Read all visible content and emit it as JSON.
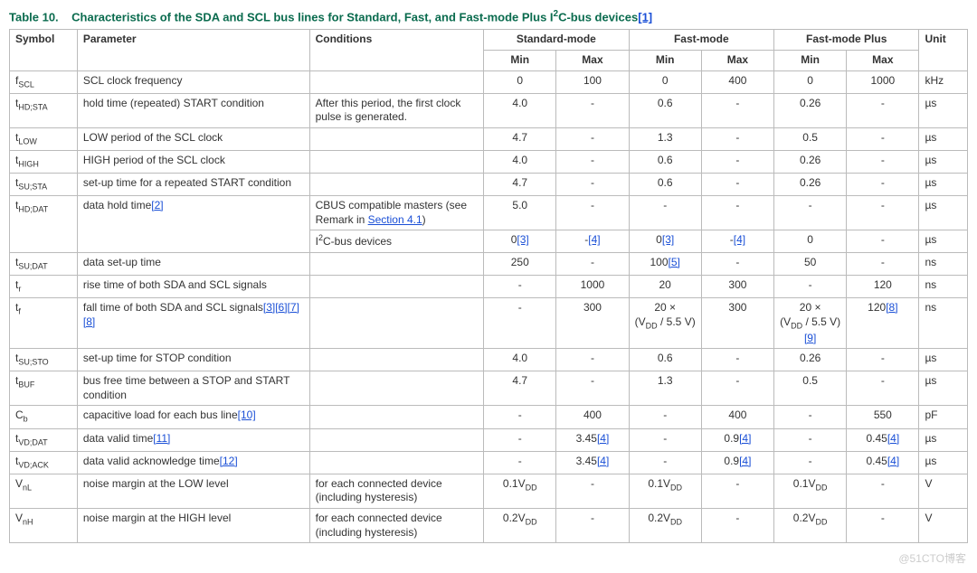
{
  "caption": {
    "label": "Table 10.",
    "text": "Characteristics of the SDA and SCL bus lines for Standard, Fast, and Fast-mode Plus I",
    "text2": "C-bus devices",
    "noteref": "[1]"
  },
  "headers": {
    "symbol": "Symbol",
    "parameter": "Parameter",
    "conditions": "Conditions",
    "std": "Standard-mode",
    "fast": "Fast-mode",
    "fmplus": "Fast-mode Plus",
    "unit": "Unit",
    "min": "Min",
    "max": "Max"
  },
  "rows": {
    "fscl": {
      "sym_pre": "f",
      "sym_sub": "SCL",
      "param": "SCL clock frequency",
      "cond": "",
      "sm_min": "0",
      "sm_max": "100",
      "fm_min": "0",
      "fm_max": "400",
      "fp_min": "0",
      "fp_max": "1000",
      "unit": "kHz"
    },
    "thdsta": {
      "sym_pre": "t",
      "sym_sub": "HD;STA",
      "param": "hold time (repeated) START condition",
      "cond": "After this period, the first clock pulse is generated.",
      "sm_min": "4.0",
      "sm_max": "-",
      "fm_min": "0.6",
      "fm_max": "-",
      "fp_min": "0.26",
      "fp_max": "-",
      "unit": "µs"
    },
    "tlow": {
      "sym_pre": "t",
      "sym_sub": "LOW",
      "param": "LOW period of the SCL clock",
      "cond": "",
      "sm_min": "4.7",
      "sm_max": "-",
      "fm_min": "1.3",
      "fm_max": "-",
      "fp_min": "0.5",
      "fp_max": "-",
      "unit": "µs"
    },
    "thigh": {
      "sym_pre": "t",
      "sym_sub": "HIGH",
      "param": "HIGH period of the SCL clock",
      "cond": "",
      "sm_min": "4.0",
      "sm_max": "-",
      "fm_min": "0.6",
      "fm_max": "-",
      "fp_min": "0.26",
      "fp_max": "-",
      "unit": "µs"
    },
    "tsusta": {
      "sym_pre": "t",
      "sym_sub": "SU;STA",
      "param": "set-up time for a repeated START condition",
      "cond": "",
      "sm_min": "4.7",
      "sm_max": "-",
      "fm_min": "0.6",
      "fm_max": "-",
      "fp_min": "0.26",
      "fp_max": "-",
      "unit": "µs"
    },
    "thddat1": {
      "sym_pre": "t",
      "sym_sub": "HD;DAT",
      "param": "data hold time",
      "param_ref": "[2]",
      "cond_pre": "CBUS compatible masters (see Remark in ",
      "cond_link": "Section 4.1",
      "cond_post": ")",
      "sm_min": "5.0",
      "sm_max": "-",
      "fm_min": "-",
      "fm_max": "-",
      "fp_min": "-",
      "fp_max": "-",
      "unit": "µs"
    },
    "thddat2": {
      "cond": "I",
      "cond2": "C-bus devices",
      "sm_min": "0",
      "sm_min_ref": "[3]",
      "sm_max": "-",
      "sm_max_ref": "[4]",
      "fm_min": "0",
      "fm_min_ref": "[3]",
      "fm_max": "-",
      "fm_max_ref": "[4]",
      "fp_min": "0",
      "fp_max": "-",
      "unit": "µs"
    },
    "tsudat": {
      "sym_pre": "t",
      "sym_sub": "SU;DAT",
      "param": "data set-up time",
      "cond": "",
      "sm_min": "250",
      "sm_max": "-",
      "fm_min": "100",
      "fm_min_ref": "[5]",
      "fm_max": "-",
      "fp_min": "50",
      "fp_max": "-",
      "unit": "ns"
    },
    "tr": {
      "sym_pre": "t",
      "sym_sub": "r",
      "param": "rise time of both SDA and SCL signals",
      "cond": "",
      "sm_min": "-",
      "sm_max": "1000",
      "fm_min": "20",
      "fm_max": "300",
      "fp_min": "-",
      "fp_max": "120",
      "unit": "ns"
    },
    "tf": {
      "sym_pre": "t",
      "sym_sub": "f",
      "param": "fall time of both SDA and SCL signals",
      "param_ref": "[3][6][7][8]",
      "cond": "",
      "sm_min": "-",
      "sm_max": "300",
      "fm_min_l1": "20 ×",
      "fm_min_l2": "(V",
      "fm_min_l3": " / 5.5 V)",
      "fm_max": "300",
      "fp_min_l1": "20 ×",
      "fp_min_l2": "(V",
      "fp_min_l3": " / 5.5 V)",
      "fp_min_ref": "[9]",
      "fp_max": "120",
      "fp_max_ref": "[8]",
      "unit": "ns"
    },
    "tsusto": {
      "sym_pre": "t",
      "sym_sub": "SU;STO",
      "param": "set-up time for STOP condition",
      "cond": "",
      "sm_min": "4.0",
      "sm_max": "-",
      "fm_min": "0.6",
      "fm_max": "-",
      "fp_min": "0.26",
      "fp_max": "-",
      "unit": "µs"
    },
    "tbuf": {
      "sym_pre": "t",
      "sym_sub": "BUF",
      "param": "bus free time between a STOP and START condition",
      "cond": "",
      "sm_min": "4.7",
      "sm_max": "-",
      "fm_min": "1.3",
      "fm_max": "-",
      "fp_min": "0.5",
      "fp_max": "-",
      "unit": "µs"
    },
    "cb": {
      "sym_pre": "C",
      "sym_sub": "b",
      "param": "capacitive load for each bus line",
      "param_ref": "[10]",
      "cond": "",
      "sm_min": "-",
      "sm_max": "400",
      "fm_min": "-",
      "fm_max": "400",
      "fp_min": "-",
      "fp_max": "550",
      "unit": "pF"
    },
    "tvddat": {
      "sym_pre": "t",
      "sym_sub": "VD;DAT",
      "param": "data valid time",
      "param_ref": "[11]",
      "cond": "",
      "sm_min": "-",
      "sm_max": "3.45",
      "sm_max_ref": "[4]",
      "fm_min": "-",
      "fm_max": "0.9",
      "fm_max_ref": "[4]",
      "fp_min": "-",
      "fp_max": "0.45",
      "fp_max_ref": "[4]",
      "unit": "µs"
    },
    "tvdack": {
      "sym_pre": "t",
      "sym_sub": "VD;ACK",
      "param": "data valid acknowledge time",
      "param_ref": "[12]",
      "cond": "",
      "sm_min": "-",
      "sm_max": "3.45",
      "sm_max_ref": "[4]",
      "fm_min": "-",
      "fm_max": "0.9",
      "fm_max_ref": "[4]",
      "fp_min": "-",
      "fp_max": "0.45",
      "fp_max_ref": "[4]",
      "unit": "µs"
    },
    "vnl": {
      "sym_pre": "V",
      "sym_sub": "nL",
      "param": "noise margin at the LOW level",
      "cond": "for each connected device (including hysteresis)",
      "sm_min": "0.1V",
      "sm_max": "-",
      "fm_min": "0.1V",
      "fm_max": "-",
      "fp_min": "0.1V",
      "fp_max": "-",
      "unit": "V"
    },
    "vnh": {
      "sym_pre": "V",
      "sym_sub": "nH",
      "param": "noise margin at the HIGH level",
      "cond": "for each connected device (including hysteresis)",
      "sm_min": "0.2V",
      "sm_max": "-",
      "fm_min": "0.2V",
      "fm_max": "-",
      "fp_min": "0.2V",
      "fp_max": "-",
      "unit": "V"
    }
  },
  "vdd_sub": "DD",
  "watermark": "@51CTO博客"
}
